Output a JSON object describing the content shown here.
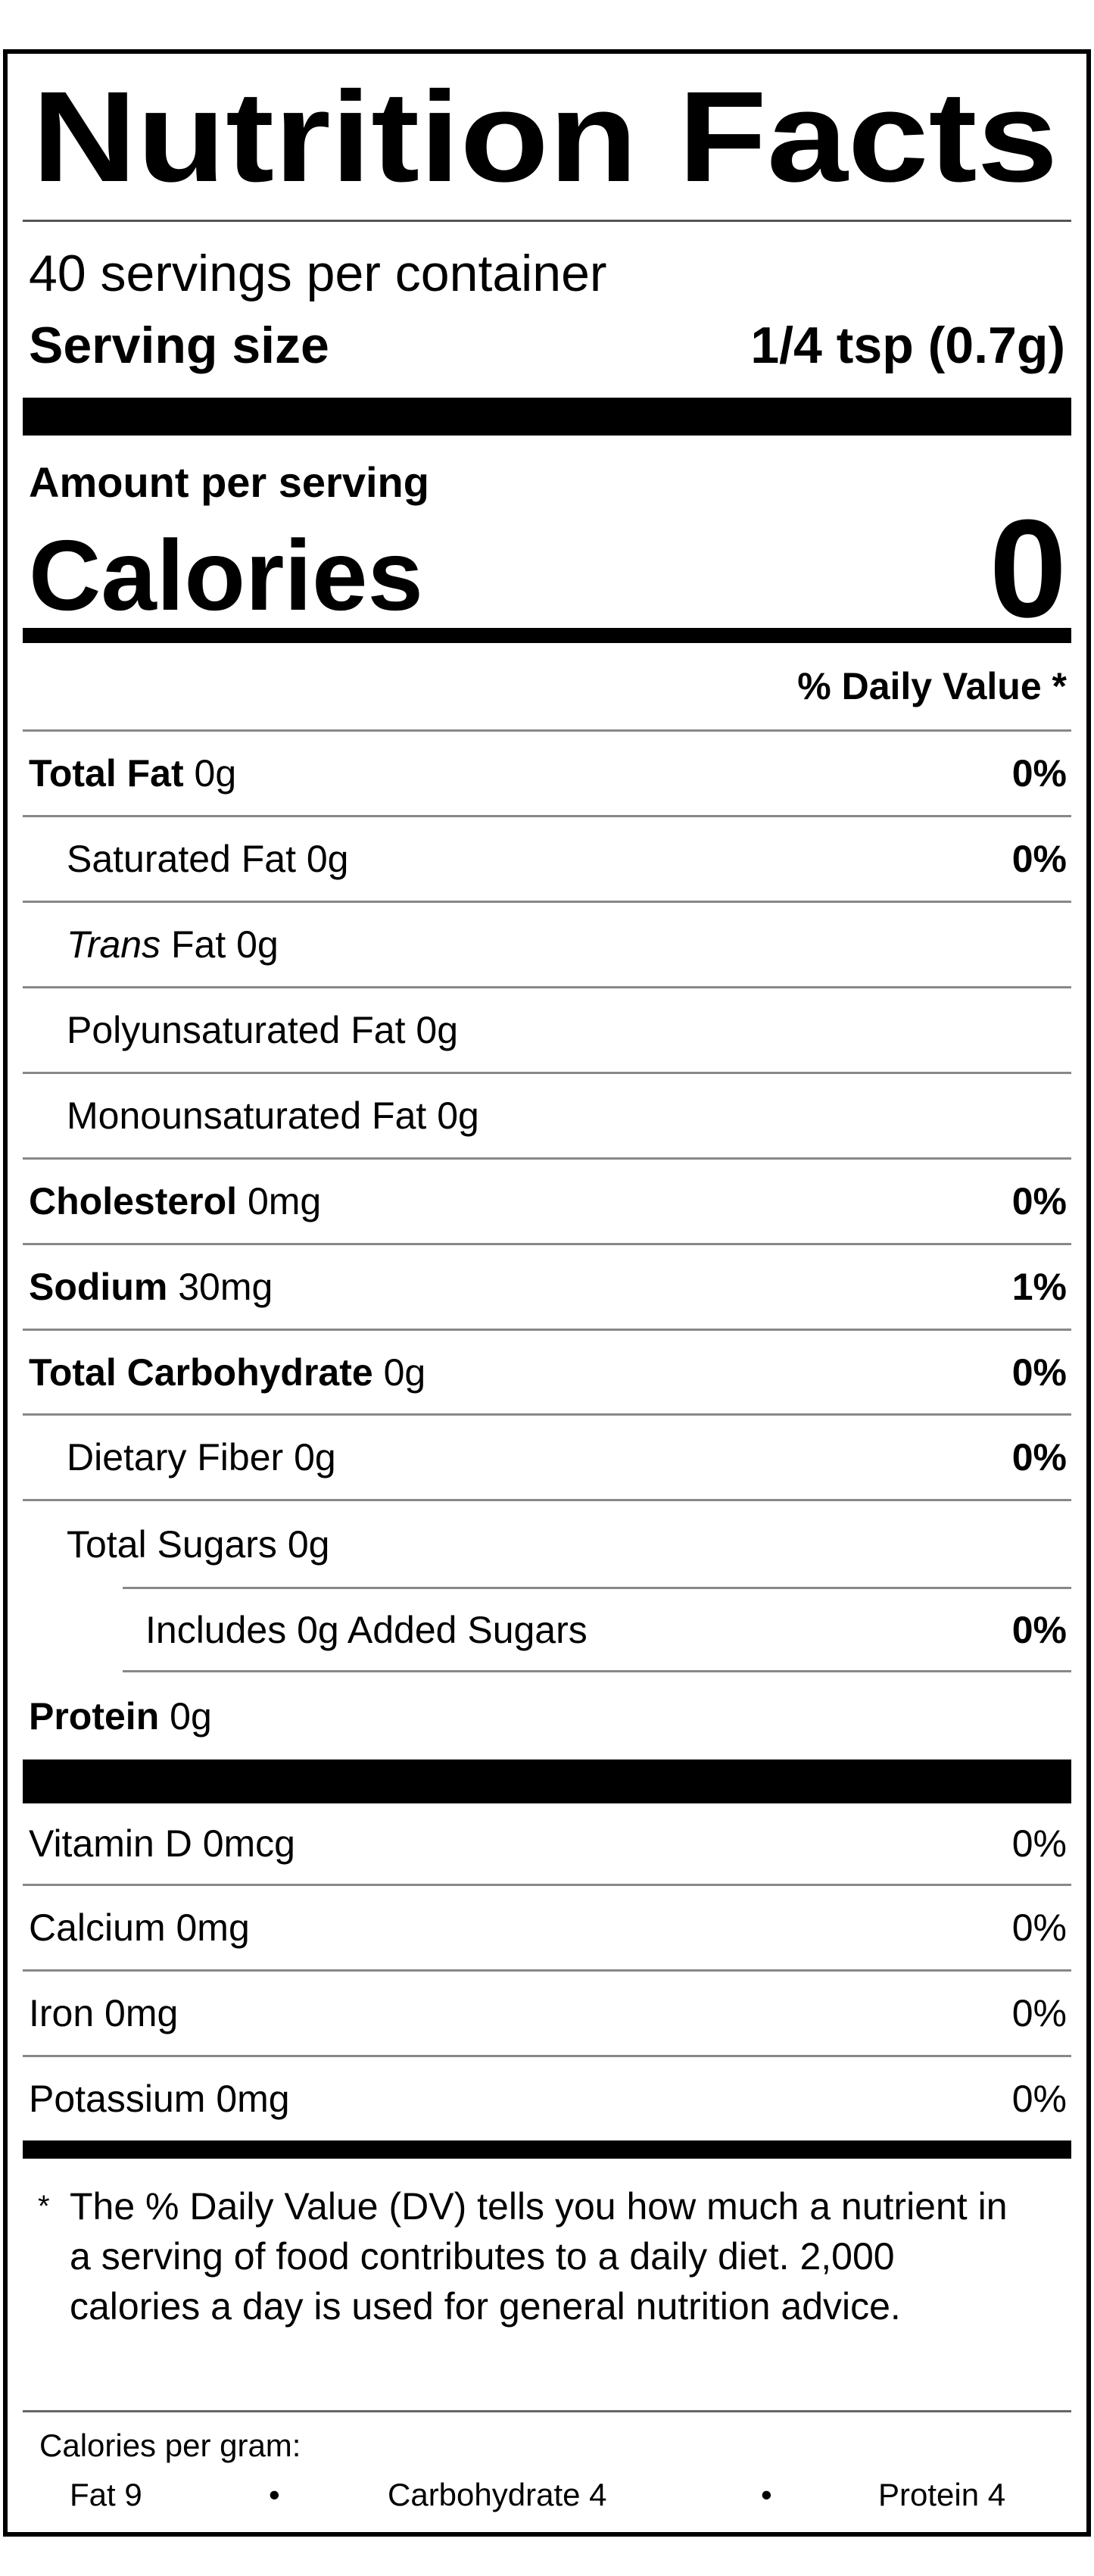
{
  "title": "Nutrition Facts",
  "servings_per_container": "40 servings per container",
  "serving_size": {
    "label": "Serving size",
    "value": "1/4 tsp (0.7g)"
  },
  "amount_per_serving": "Amount per serving",
  "calories": {
    "label": "Calories",
    "value": "0"
  },
  "daily_value_header": "% Daily Value *",
  "nutrients": [
    {
      "name": "Total Fat",
      "amount": "0g",
      "dv": "0%"
    },
    {
      "name": "Saturated Fat",
      "amount": "0g",
      "dv": "0%"
    },
    {
      "name": "Trans",
      "suffix": "Fat 0g",
      "dv": ""
    },
    {
      "name": "Polyunsaturated Fat",
      "amount": "0g",
      "dv": ""
    },
    {
      "name": "Monounsaturated Fat",
      "amount": "0g",
      "dv": ""
    },
    {
      "name": "Cholesterol",
      "amount": "0mg",
      "dv": "0%"
    },
    {
      "name": "Sodium",
      "amount": "30mg",
      "dv": "1%"
    },
    {
      "name": "Total Carbohydrate",
      "amount": "0g",
      "dv": "0%"
    },
    {
      "name": "Dietary Fiber",
      "amount": "0g",
      "dv": "0%"
    },
    {
      "name": "Total Sugars",
      "amount": "0g",
      "dv": ""
    },
    {
      "name": "Includes 0g Added Sugars",
      "amount": "",
      "dv": "0%"
    },
    {
      "name": "Protein",
      "amount": "0g",
      "dv": ""
    }
  ],
  "vitamins": [
    {
      "name": "Vitamin D 0mcg",
      "dv": "0%"
    },
    {
      "name": "Calcium 0mg",
      "dv": "0%"
    },
    {
      "name": "Iron 0mg",
      "dv": "0%"
    },
    {
      "name": "Potassium 0mg",
      "dv": "0%"
    }
  ],
  "footnote": {
    "marker": "*",
    "text": "The % Daily Value (DV) tells you how much a nutrient in a serving of food contributes to a daily diet. 2,000 calories a day is used for general nutrition advice."
  },
  "calories_per_gram": {
    "label": "Calories per gram:",
    "fat": "Fat 9",
    "carbohydrate": "Carbohydrate 4",
    "protein": "Protein 4",
    "separator": "•"
  }
}
